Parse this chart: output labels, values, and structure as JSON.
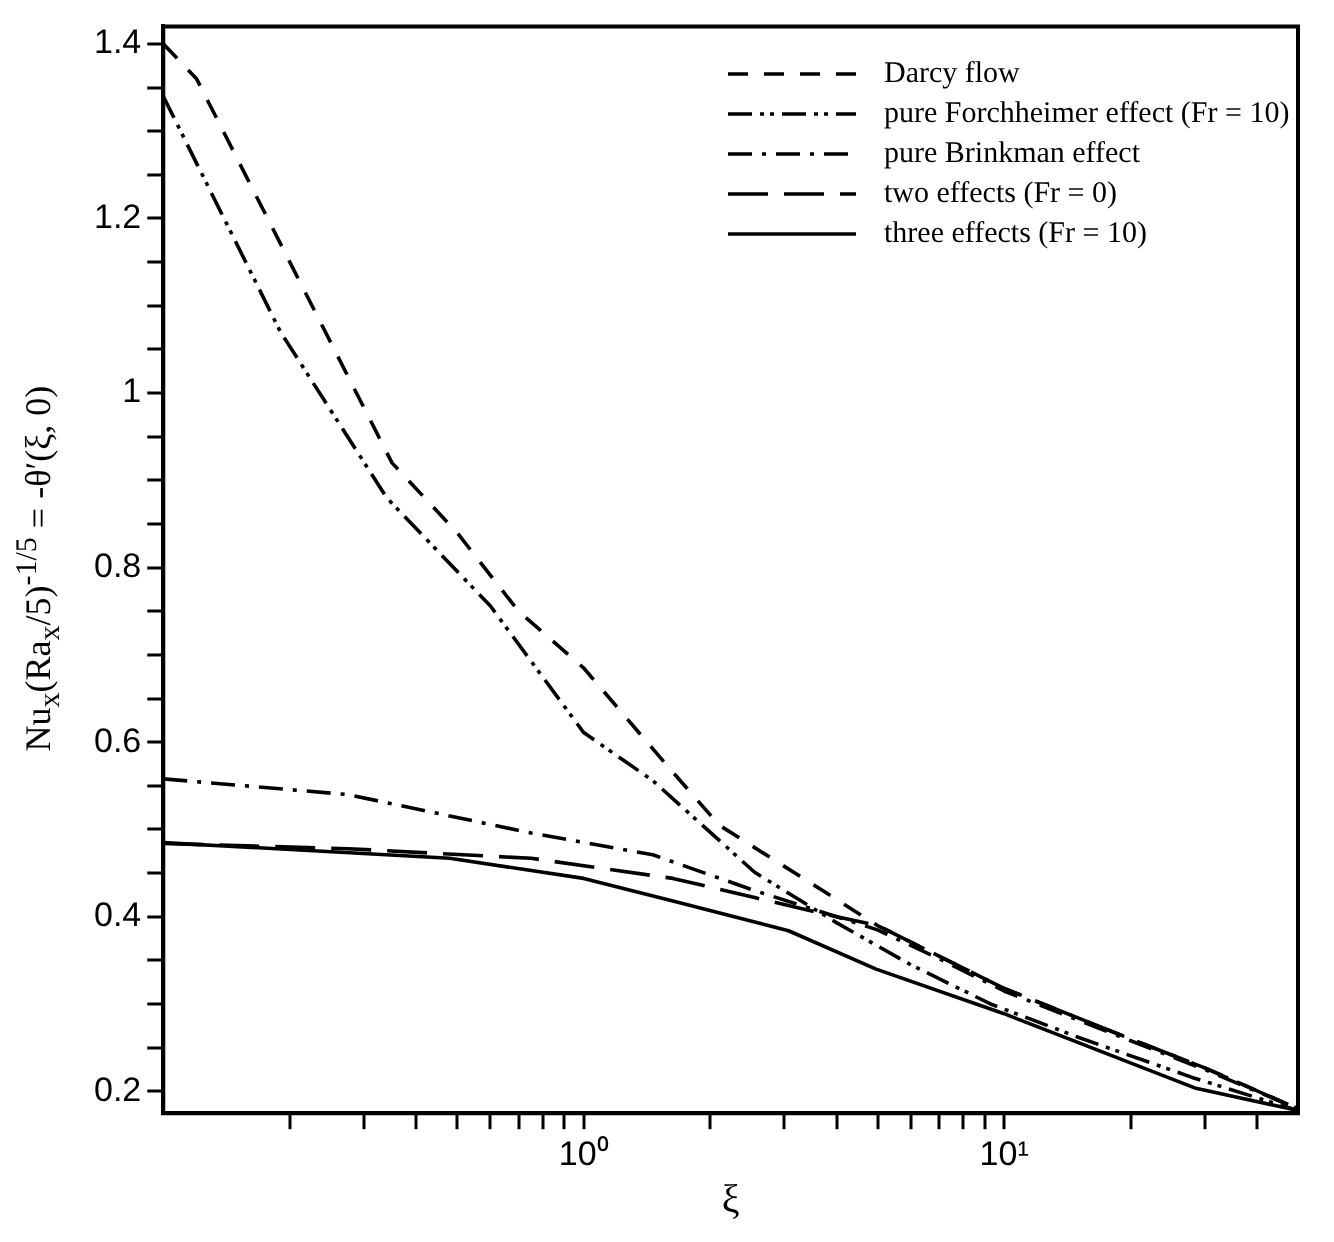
{
  "chart_data": {
    "type": "line",
    "xlabel": "ξ",
    "ylabel": "Nu$_{x}$(Ra$_{x}$/5)$^{-1/5}$ = -θ′(ξ, 0)",
    "log": "x",
    "xlim": [
      0.1,
      50
    ],
    "ylim": [
      0.175,
      1.42
    ],
    "xticks": [
      {
        "value": 0.2,
        "label": null
      },
      {
        "value": 0.3,
        "label": null
      },
      {
        "value": 0.4,
        "label": null
      },
      {
        "value": 0.5,
        "label": null
      },
      {
        "value": 0.6,
        "label": null
      },
      {
        "value": 0.7,
        "label": null
      },
      {
        "value": 0.8,
        "label": null
      },
      {
        "value": 0.9,
        "label": null
      },
      {
        "value": 1,
        "label": "10⁰"
      },
      {
        "value": 2,
        "label": null
      },
      {
        "value": 3,
        "label": null
      },
      {
        "value": 4,
        "label": null
      },
      {
        "value": 5,
        "label": null
      },
      {
        "value": 6,
        "label": null
      },
      {
        "value": 7,
        "label": null
      },
      {
        "value": 8,
        "label": null
      },
      {
        "value": 9,
        "label": null
      },
      {
        "value": 10,
        "label": "10¹"
      },
      {
        "value": 20,
        "label": null
      },
      {
        "value": 30,
        "label": null
      },
      {
        "value": 40,
        "label": null
      }
    ],
    "yticks": [
      0.2,
      {
        "value": 0.25,
        "label": null
      },
      {
        "value": 0.3,
        "label": null
      },
      {
        "value": 0.35,
        "label": null
      },
      0.4,
      {
        "value": 0.45,
        "label": null
      },
      {
        "value": 0.5,
        "label": null
      },
      {
        "value": 0.55,
        "label": null
      },
      0.6,
      {
        "value": 0.65,
        "label": null
      },
      {
        "value": 0.7,
        "label": null
      },
      {
        "value": 0.75,
        "label": null
      },
      0.8,
      {
        "value": 0.85,
        "label": null
      },
      {
        "value": 0.9,
        "label": null
      },
      {
        "value": 0.95,
        "label": null
      },
      1,
      {
        "value": 1.05,
        "label": null
      },
      {
        "value": 1.1,
        "label": null
      },
      {
        "value": 1.15,
        "label": null
      },
      1.2,
      {
        "value": 1.25,
        "label": null
      },
      {
        "value": 1.3,
        "label": null
      },
      {
        "value": 1.35,
        "label": null
      },
      1.4
    ],
    "legend": "top right",
    "marker": "none",
    "series": [
      {
        "name": "Darcy flow",
        "color": "#000000",
        "line_style": "dashed",
        "x": [
          0.1,
          0.12,
          0.2,
          0.35,
          0.5,
          0.7,
          1,
          1.6,
          2.1,
          3.7,
          5,
          7,
          10,
          20,
          30,
          50
        ],
        "values": [
          1.4,
          1.36,
          1.15,
          0.92,
          0.84,
          0.75,
          0.685,
          0.57,
          0.505,
          0.43,
          0.39,
          0.355,
          0.318,
          0.26,
          0.227,
          0.18
        ]
      },
      {
        "name": "pure Forchheimer effect (Fr = 10)",
        "color": "#000000",
        "line_style": "dashdotdot",
        "x": [
          0.1,
          0.19,
          0.34,
          0.6,
          1,
          1.46,
          2.55,
          4,
          6,
          9.3,
          15,
          28,
          50
        ],
        "values": [
          1.34,
          1.07,
          0.88,
          0.756,
          0.611,
          0.556,
          0.451,
          0.393,
          0.345,
          0.3,
          0.262,
          0.216,
          0.178
        ]
      },
      {
        "name": "pure Brinkman effect",
        "color": "#000000",
        "line_style": "dashdot",
        "x": [
          0.1,
          0.275,
          0.75,
          1.46,
          2.55,
          4,
          5,
          7,
          10,
          20,
          30,
          50
        ],
        "values": [
          0.558,
          0.54,
          0.496,
          0.471,
          0.43,
          0.4,
          0.385,
          0.352,
          0.315,
          0.258,
          0.225,
          0.18
        ]
      },
      {
        "name": "two effects (Fr = 0)",
        "color": "#000000",
        "line_style": "longdash",
        "x": [
          0.1,
          0.275,
          0.75,
          1.63,
          2.55,
          4,
          5,
          7,
          10,
          20,
          30,
          50
        ],
        "values": [
          0.484,
          0.478,
          0.467,
          0.444,
          0.422,
          0.4,
          0.39,
          0.355,
          0.318,
          0.26,
          0.227,
          0.18
        ]
      },
      {
        "name": "three effects (Fr = 10)",
        "color": "#000000",
        "line_style": "solid",
        "x": [
          0.1,
          0.48,
          1,
          1.63,
          3.07,
          4.96,
          10,
          28.4,
          50
        ],
        "values": [
          0.485,
          0.467,
          0.444,
          0.418,
          0.384,
          0.34,
          0.289,
          0.204,
          0.178
        ]
      }
    ]
  }
}
